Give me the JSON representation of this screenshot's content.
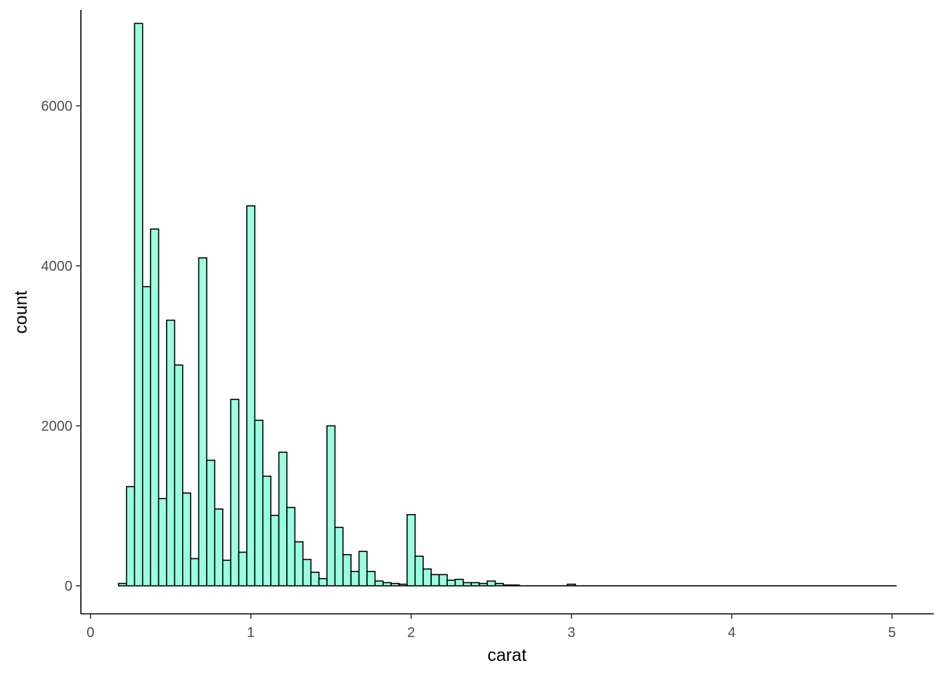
{
  "chart_data": {
    "type": "bar",
    "title": "",
    "xlabel": "carat",
    "ylabel": "count",
    "xlim": [
      -0.06,
      5.26
    ],
    "ylim": [
      -350,
      7200
    ],
    "x_ticks": [
      0,
      1,
      2,
      3,
      4,
      5
    ],
    "y_ticks": [
      0,
      2000,
      4000,
      6000
    ],
    "grid": false,
    "legend": "none",
    "bar_fill": "#99FFE0",
    "bar_stroke": "#000000",
    "bin_width": 0.05,
    "series": [
      {
        "bin_starts": [
          0.175,
          0.225,
          0.275,
          0.325,
          0.375,
          0.425,
          0.475,
          0.525,
          0.575,
          0.625,
          0.675,
          0.725,
          0.775,
          0.825,
          0.875,
          0.925,
          0.975,
          1.025,
          1.075,
          1.125,
          1.175,
          1.225,
          1.275,
          1.325,
          1.375,
          1.425,
          1.475,
          1.525,
          1.575,
          1.625,
          1.675,
          1.725,
          1.775,
          1.825,
          1.875,
          1.925,
          1.975,
          2.025,
          2.075,
          2.125,
          2.175,
          2.225,
          2.275,
          2.325,
          2.375,
          2.425,
          2.475,
          2.525,
          2.575,
          2.625,
          2.675,
          2.725,
          2.775,
          2.825,
          2.875,
          2.925,
          2.975,
          3.025,
          3.075,
          3.125,
          3.175,
          3.225,
          3.275,
          3.325,
          3.375,
          3.425,
          3.475,
          3.525,
          3.575,
          3.625,
          3.675,
          3.725,
          3.775,
          3.825,
          3.875,
          3.925,
          3.975,
          4.025,
          4.075,
          4.125,
          4.175,
          4.225,
          4.275,
          4.325,
          4.375,
          4.425,
          4.475,
          4.525,
          4.575,
          4.625,
          4.675,
          4.725,
          4.775,
          4.825,
          4.875,
          4.925,
          4.975
        ],
        "values": [
          30,
          1240,
          7030,
          3740,
          4460,
          1090,
          3320,
          2760,
          1160,
          340,
          4100,
          1570,
          960,
          320,
          2330,
          420,
          4750,
          2070,
          1370,
          880,
          1670,
          980,
          550,
          330,
          170,
          90,
          2000,
          730,
          390,
          180,
          430,
          180,
          60,
          40,
          30,
          20,
          890,
          370,
          210,
          140,
          140,
          70,
          80,
          40,
          40,
          30,
          60,
          30,
          10,
          10,
          0,
          0,
          0,
          0,
          0,
          0,
          20,
          0,
          0,
          0,
          0,
          0,
          0,
          0,
          0,
          0,
          0,
          0,
          0,
          0,
          0,
          0,
          0,
          0,
          0,
          0,
          0,
          0,
          0,
          0,
          0,
          0,
          0,
          0,
          0,
          0,
          0,
          0,
          0,
          0,
          0,
          0,
          0,
          0,
          0,
          0,
          0
        ]
      }
    ]
  }
}
